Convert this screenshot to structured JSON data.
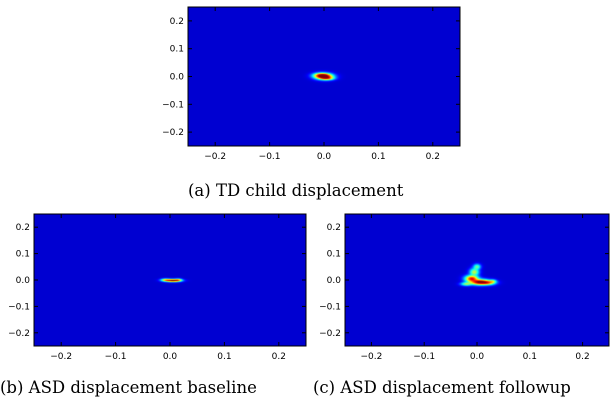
{
  "chart_data": [
    {
      "type": "heatmap",
      "caption": "(a) TD child displacement",
      "xlim": [
        -0.25,
        0.25
      ],
      "ylim": [
        -0.25,
        0.25
      ],
      "x_ticks": [
        "−0.2",
        "−0.1",
        "0.0",
        "0.1",
        "0.2"
      ],
      "y_ticks": [
        "0.2",
        "0.1",
        "0.0",
        "−0.1",
        "−0.2"
      ],
      "colormap": "jet",
      "background_color": "#00007f",
      "hotspots": [
        {
          "x": 0.0,
          "y": 0.0,
          "intensity": 1.0,
          "sx": 0.009,
          "sy": 0.006
        },
        {
          "x": -0.005,
          "y": 0.004,
          "intensity": 0.6,
          "sx": 0.008,
          "sy": 0.005
        },
        {
          "x": 0.006,
          "y": -0.006,
          "intensity": 0.45,
          "sx": 0.007,
          "sy": 0.004
        }
      ]
    },
    {
      "type": "heatmap",
      "caption": "(b) ASD displacement baseline",
      "xlim": [
        -0.25,
        0.25
      ],
      "ylim": [
        -0.25,
        0.25
      ],
      "x_ticks": [
        "−0.2",
        "−0.1",
        "0.0",
        "0.1",
        "0.2"
      ],
      "y_ticks": [
        "0.2",
        "0.1",
        "0.0",
        "−0.1",
        "−0.2"
      ],
      "colormap": "jet",
      "background_color": "#00007f",
      "hotspots": [
        {
          "x": 0.005,
          "y": -0.002,
          "intensity": 1.0,
          "sx": 0.008,
          "sy": 0.003
        },
        {
          "x": -0.008,
          "y": 0.0,
          "intensity": 0.4,
          "sx": 0.005,
          "sy": 0.003
        },
        {
          "x": 0.015,
          "y": 0.0,
          "intensity": 0.35,
          "sx": 0.004,
          "sy": 0.003
        }
      ]
    },
    {
      "type": "heatmap",
      "caption": "(c) ASD displacement followup",
      "xlim": [
        -0.25,
        0.25
      ],
      "ylim": [
        -0.25,
        0.25
      ],
      "x_ticks": [
        "−0.2",
        "−0.1",
        "0.0",
        "0.1",
        "0.2"
      ],
      "y_ticks": [
        "0.2",
        "0.1",
        "0.0",
        "−0.1",
        "−0.2"
      ],
      "colormap": "jet",
      "background_color": "#00007f",
      "hotspots": [
        {
          "x": 0.005,
          "y": -0.008,
          "intensity": 1.0,
          "sx": 0.01,
          "sy": 0.006
        },
        {
          "x": -0.01,
          "y": 0.005,
          "intensity": 0.8,
          "sx": 0.007,
          "sy": 0.007
        },
        {
          "x": 0.02,
          "y": -0.01,
          "intensity": 0.55,
          "sx": 0.008,
          "sy": 0.005
        },
        {
          "x": -0.005,
          "y": 0.03,
          "intensity": 0.35,
          "sx": 0.005,
          "sy": 0.008
        },
        {
          "x": 0.0,
          "y": 0.05,
          "intensity": 0.25,
          "sx": 0.004,
          "sy": 0.006
        },
        {
          "x": -0.02,
          "y": -0.015,
          "intensity": 0.3,
          "sx": 0.006,
          "sy": 0.004
        },
        {
          "x": 0.03,
          "y": -0.005,
          "intensity": 0.25,
          "sx": 0.004,
          "sy": 0.004
        }
      ]
    }
  ]
}
